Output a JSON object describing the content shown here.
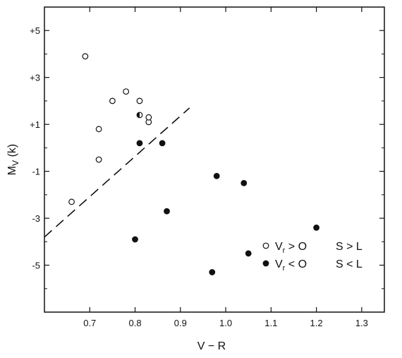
{
  "chart_data": {
    "type": "scatter",
    "xlabel": "V − R",
    "ylabel_main": "M",
    "ylabel_sub": "V",
    "ylabel_tail": " (k)",
    "xlim": [
      0.6,
      1.35
    ],
    "ylim": [
      6.0,
      -7.0
    ],
    "x_ticks": [
      0.7,
      0.8,
      0.9,
      1.0,
      1.1,
      1.2,
      1.3
    ],
    "x_tick_labels": [
      "0.7",
      "0.8",
      "0.9",
      "1.0",
      "1.1",
      "1.2",
      "1.3"
    ],
    "y_ticks": [
      5,
      3,
      1,
      -1,
      -3,
      -5
    ],
    "y_tick_labels": [
      "+5",
      "+3",
      "+1",
      "-1",
      "-3",
      "-5"
    ],
    "y_minor_ticks": [
      6,
      4,
      2,
      0,
      -2,
      -4,
      -6
    ],
    "grid": false,
    "series": [
      {
        "marker": "open-circle",
        "points": [
          [
            0.66,
            -2.3
          ],
          [
            0.72,
            -0.5
          ],
          [
            0.72,
            0.8
          ],
          [
            0.69,
            3.9
          ],
          [
            0.75,
            2.0
          ],
          [
            0.78,
            2.4
          ],
          [
            0.81,
            2.0
          ],
          [
            0.83,
            1.1
          ],
          [
            0.83,
            1.3
          ]
        ]
      },
      {
        "marker": "half-filled-circle",
        "points": [
          [
            0.81,
            1.4
          ]
        ]
      },
      {
        "marker": "filled-circle",
        "points": [
          [
            0.8,
            -3.9
          ],
          [
            0.87,
            -2.7
          ],
          [
            0.97,
            -5.3
          ],
          [
            1.05,
            -4.5
          ],
          [
            1.2,
            -3.4
          ],
          [
            0.98,
            -1.2
          ],
          [
            1.04,
            -1.5
          ],
          [
            0.81,
            0.2
          ],
          [
            0.86,
            0.2
          ]
        ]
      }
    ],
    "dividing_line": {
      "style": "dashed",
      "from": [
        0.6,
        -3.8
      ],
      "to": [
        0.92,
        1.7
      ]
    },
    "legend": {
      "position": "bottom-right",
      "entries": [
        {
          "marker": "open-circle",
          "label": "V",
          "sub": "r",
          "cond": " > O",
          "rel": "S > L"
        },
        {
          "marker": "filled-circle",
          "label": "V",
          "sub": "r",
          "cond": " < O",
          "rel": "S < L"
        }
      ]
    },
    "colors": {
      "ink": "#111111",
      "background": "#ffffff"
    }
  }
}
